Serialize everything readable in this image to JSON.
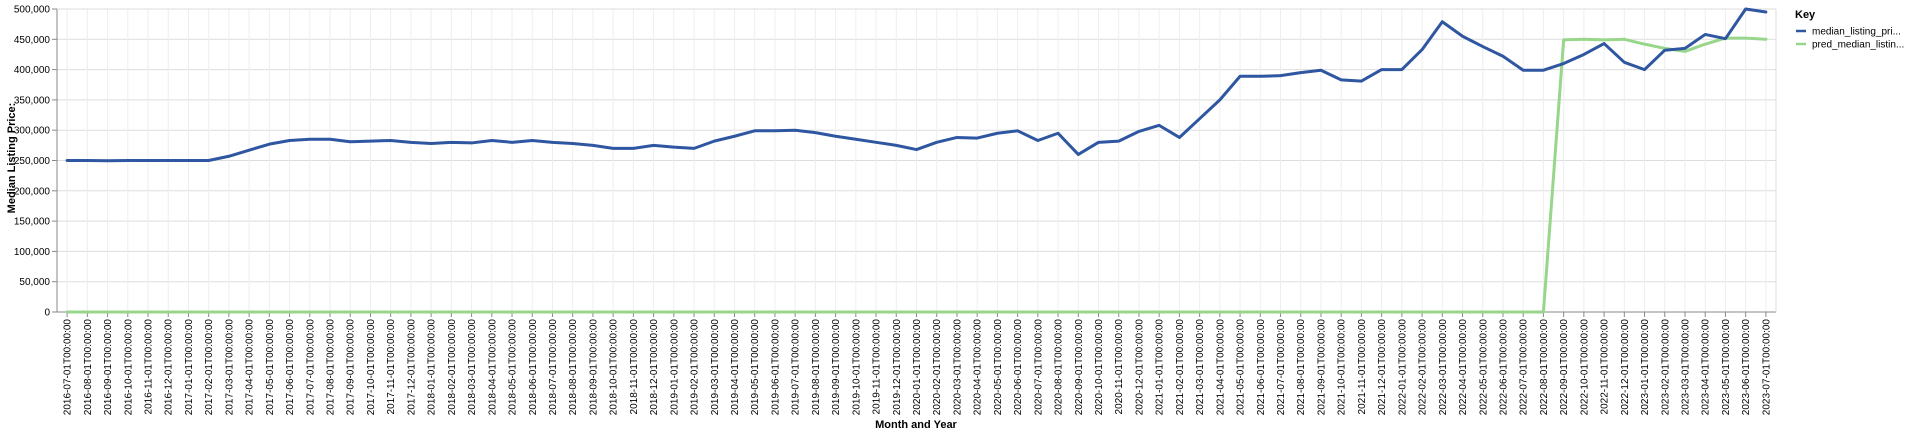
{
  "chart_data": {
    "type": "line",
    "xlabel": "Month and Year",
    "ylabel": "Median Listing Price:",
    "ylim": [
      0,
      500000
    ],
    "y_ticks": [
      "0",
      "50,000",
      "100,000",
      "150,000",
      "200,000",
      "250,000",
      "300,000",
      "350,000",
      "400,000",
      "450,000",
      "500,000"
    ],
    "grid": true,
    "legend": {
      "title": "Key",
      "placement": "right"
    },
    "x": [
      "2016-07-01T00:00:00",
      "2016-08-01T00:00:00",
      "2016-09-01T00:00:00",
      "2016-10-01T00:00:00",
      "2016-11-01T00:00:00",
      "2016-12-01T00:00:00",
      "2017-01-01T00:00:00",
      "2017-02-01T00:00:00",
      "2017-03-01T00:00:00",
      "2017-04-01T00:00:00",
      "2017-05-01T00:00:00",
      "2017-06-01T00:00:00",
      "2017-07-01T00:00:00",
      "2017-08-01T00:00:00",
      "2017-09-01T00:00:00",
      "2017-10-01T00:00:00",
      "2017-11-01T00:00:00",
      "2017-12-01T00:00:00",
      "2018-01-01T00:00:00",
      "2018-02-01T00:00:00",
      "2018-03-01T00:00:00",
      "2018-04-01T00:00:00",
      "2018-05-01T00:00:00",
      "2018-06-01T00:00:00",
      "2018-07-01T00:00:00",
      "2018-08-01T00:00:00",
      "2018-09-01T00:00:00",
      "2018-10-01T00:00:00",
      "2018-11-01T00:00:00",
      "2018-12-01T00:00:00",
      "2019-01-01T00:00:00",
      "2019-02-01T00:00:00",
      "2019-03-01T00:00:00",
      "2019-04-01T00:00:00",
      "2019-05-01T00:00:00",
      "2019-06-01T00:00:00",
      "2019-07-01T00:00:00",
      "2019-08-01T00:00:00",
      "2019-09-01T00:00:00",
      "2019-10-01T00:00:00",
      "2019-11-01T00:00:00",
      "2019-12-01T00:00:00",
      "2020-01-01T00:00:00",
      "2020-02-01T00:00:00",
      "2020-03-01T00:00:00",
      "2020-04-01T00:00:00",
      "2020-05-01T00:00:00",
      "2020-06-01T00:00:00",
      "2020-07-01T00:00:00",
      "2020-08-01T00:00:00",
      "2020-09-01T00:00:00",
      "2020-10-01T00:00:00",
      "2020-11-01T00:00:00",
      "2020-12-01T00:00:00",
      "2021-01-01T00:00:00",
      "2021-02-01T00:00:00",
      "2021-03-01T00:00:00",
      "2021-04-01T00:00:00",
      "2021-05-01T00:00:00",
      "2021-06-01T00:00:00",
      "2021-07-01T00:00:00",
      "2021-08-01T00:00:00",
      "2021-09-01T00:00:00",
      "2021-10-01T00:00:00",
      "2021-11-01T00:00:00",
      "2021-12-01T00:00:00",
      "2022-01-01T00:00:00",
      "2022-02-01T00:00:00",
      "2022-03-01T00:00:00",
      "2022-04-01T00:00:00",
      "2022-05-01T00:00:00",
      "2022-06-01T00:00:00",
      "2022-07-01T00:00:00",
      "2022-08-01T00:00:00",
      "2022-09-01T00:00:00",
      "2022-10-01T00:00:00",
      "2022-11-01T00:00:00",
      "2022-12-01T00:00:00",
      "2023-01-01T00:00:00",
      "2023-02-01T00:00:00",
      "2023-03-01T00:00:00",
      "2023-04-01T00:00:00",
      "2023-05-01T00:00:00",
      "2023-06-01T00:00:00",
      "2023-07-01T00:00:00"
    ],
    "series": [
      {
        "name": "median_listing_pri...",
        "color": "#2f56a0",
        "values": [
          250000,
          250000,
          249500,
          250000,
          250000,
          250000,
          250000,
          250000,
          257000,
          267000,
          277000,
          283000,
          285000,
          285000,
          281000,
          282000,
          283000,
          280000,
          278000,
          280000,
          279000,
          283000,
          280000,
          283000,
          280000,
          278000,
          275000,
          270000,
          270000,
          275000,
          272000,
          270000,
          282000,
          290000,
          299000,
          299000,
          300000,
          296000,
          290000,
          285000,
          280000,
          275000,
          268000,
          280000,
          288000,
          287000,
          295000,
          299000,
          283000,
          295000,
          260000,
          280000,
          282000,
          298000,
          308000,
          288000,
          319000,
          350000,
          389000,
          389000,
          390000,
          395000,
          399000,
          383000,
          381000,
          400000,
          400000,
          433000,
          479000,
          455000,
          438000,
          422000,
          399000,
          399000,
          410000,
          425000,
          443000,
          412000,
          400000,
          432000,
          435000,
          458000,
          451000,
          500000,
          495000
        ]
      },
      {
        "name": "pred_median_listin...",
        "color": "#98d68b",
        "values": [
          0,
          0,
          0,
          0,
          0,
          0,
          0,
          0,
          0,
          0,
          0,
          0,
          0,
          0,
          0,
          0,
          0,
          0,
          0,
          0,
          0,
          0,
          0,
          0,
          0,
          0,
          0,
          0,
          0,
          0,
          0,
          0,
          0,
          0,
          0,
          0,
          0,
          0,
          0,
          0,
          0,
          0,
          0,
          0,
          0,
          0,
          0,
          0,
          0,
          0,
          0,
          0,
          0,
          0,
          0,
          0,
          0,
          0,
          0,
          0,
          0,
          0,
          0,
          0,
          0,
          0,
          0,
          0,
          0,
          0,
          0,
          0,
          0,
          0,
          449000,
          450000,
          449000,
          450000,
          442000,
          435000,
          430000,
          442000,
          452000,
          452000,
          450000
        ]
      }
    ]
  }
}
